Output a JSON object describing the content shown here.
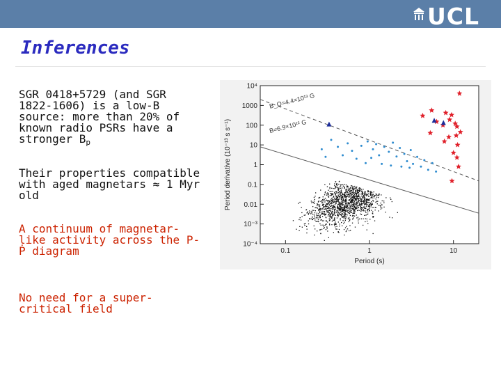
{
  "header": {
    "logo_text": "UCL",
    "bar_color": "#5b7fa8"
  },
  "slide": {
    "title": "Inferences",
    "title_color": "#2b2bbf",
    "text_color": "#111111",
    "accent_color": "#cc2200",
    "bullets": [
      {
        "text": "SGR 0418+5729 (and SGR 1822-1606) is a low-B source: more than 20% of known radio PSRs have a stronger B",
        "sub": "p"
      },
      {
        "text": "Their properties compatible with aged magnetars ≈ 1 Myr old"
      },
      {
        "text": "A continuum of magnetar-like activity across the P-Ṗ diagram"
      },
      {
        "text": "No need for a super-critical field"
      }
    ]
  },
  "chart_data": {
    "type": "scatter",
    "xlabel": "Period (s)",
    "ylabel": "Period derivative (10⁻¹³ s s⁻¹)",
    "x_scale": "log",
    "y_scale": "log",
    "xlim": [
      0.05,
      20
    ],
    "ylim": [
      0.0001,
      10000
    ],
    "x_ticks": [
      "0.1",
      "1",
      "10"
    ],
    "y_ticks": [
      "10⁴",
      "1000",
      "100",
      "10",
      "1",
      "0.1",
      "0.01",
      "10⁻³",
      "10⁻⁴"
    ],
    "lines": [
      {
        "label": "B_Q=4.4×10¹³ G",
        "points": [
          [
            0.05,
            2000
          ],
          [
            20,
            0.15
          ]
        ],
        "style": "dashed"
      },
      {
        "label": "B=6.9×10¹² G",
        "points": [
          [
            0.05,
            8
          ],
          [
            20,
            0.0035
          ]
        ],
        "style": "solid"
      }
    ],
    "series": [
      {
        "marker": "star",
        "color": "#e0202a",
        "points": [
          [
            11.8,
            4000
          ],
          [
            5.5,
            560
          ],
          [
            4.3,
            300
          ],
          [
            6.3,
            150
          ],
          [
            7.5,
            100
          ],
          [
            8.1,
            420
          ],
          [
            9.0,
            190
          ],
          [
            9.5,
            330
          ],
          [
            10.5,
            120
          ],
          [
            11.0,
            85
          ],
          [
            12.1,
            45
          ],
          [
            5.3,
            40
          ],
          [
            8.8,
            25
          ],
          [
            10.8,
            30
          ],
          [
            7.8,
            15
          ],
          [
            11.2,
            10
          ],
          [
            10.0,
            4
          ],
          [
            11.0,
            2.3
          ],
          [
            11.5,
            0.8
          ],
          [
            9.6,
            0.15
          ]
        ]
      },
      {
        "marker": "triangle",
        "color": "#1c2d9a",
        "points": [
          [
            0.33,
            110
          ],
          [
            5.9,
            170
          ],
          [
            7.6,
            130
          ]
        ]
      },
      {
        "marker": "dot",
        "color": "#2f8ccf",
        "points": [
          [
            0.35,
            18
          ],
          [
            0.42,
            8
          ],
          [
            0.55,
            12
          ],
          [
            0.62,
            5
          ],
          [
            0.8,
            9
          ],
          [
            0.95,
            15
          ],
          [
            1.1,
            6
          ],
          [
            1.2,
            11
          ],
          [
            1.3,
            3
          ],
          [
            1.5,
            8
          ],
          [
            1.7,
            4.5
          ],
          [
            1.9,
            13
          ],
          [
            2.1,
            2.6
          ],
          [
            2.3,
            7
          ],
          [
            2.6,
            3.5
          ],
          [
            2.8,
            1.5
          ],
          [
            3.1,
            5.5
          ],
          [
            3.3,
            1.1
          ],
          [
            3.7,
            2.5
          ],
          [
            4.1,
            0.8
          ],
          [
            4.5,
            1.7
          ],
          [
            5.0,
            0.55
          ],
          [
            5.6,
            1.2
          ],
          [
            6.2,
            0.45
          ],
          [
            0.48,
            3
          ],
          [
            0.7,
            2
          ],
          [
            0.9,
            1.2
          ],
          [
            1.05,
            2.2
          ],
          [
            1.4,
            1.1
          ],
          [
            1.8,
            0.9
          ],
          [
            2.4,
            0.8
          ],
          [
            3.0,
            0.7
          ],
          [
            0.27,
            6
          ],
          [
            0.3,
            2.5
          ]
        ]
      }
    ],
    "background_points": "~1800 black dots (radio pulsars) concentrated around P≈0.5 s, Ṗ≈0.01"
  }
}
